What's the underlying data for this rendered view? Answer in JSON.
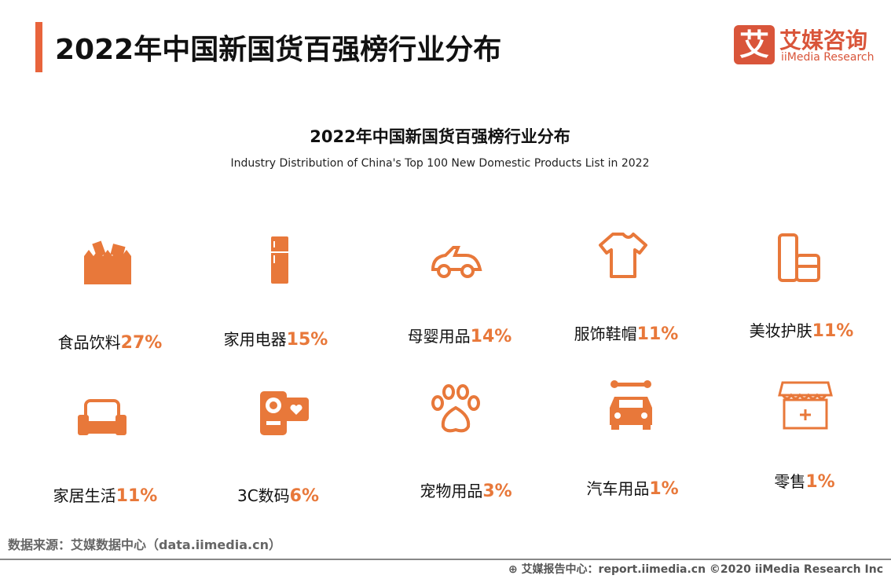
{
  "header": {
    "title": "2022年中国新国货百强榜行业分布",
    "logo_glyph": "艾",
    "logo_cn": "艾媒咨询",
    "logo_en": "iiMedia Research"
  },
  "accent": "#E8783A",
  "chart_data": {
    "type": "table",
    "title": "2022年中国新国货百强榜行业分布",
    "subtitle": "Industry Distribution of China's Top 100 New Domestic Products List in 2022",
    "unit": "%",
    "categories": [
      "食品饮料",
      "家用电器",
      "母婴用品",
      "服饰鞋帽",
      "美妆护肤",
      "家居生活",
      "3C数码",
      "宠物用品",
      "汽车用品",
      "零售"
    ],
    "values": [
      27,
      15,
      14,
      11,
      11,
      11,
      6,
      3,
      1,
      1
    ],
    "icons": [
      "food-drink-icon",
      "refrigerator-icon",
      "baby-car-icon",
      "tshirt-icon",
      "cosmetics-icon",
      "sofa-icon",
      "camera-icon",
      "paw-icon",
      "car-wrench-icon",
      "store-icon"
    ]
  },
  "footer": {
    "source": "数据来源：艾媒数据中心（data.iimedia.cn）",
    "credit": "艾媒报告中心：report.iimedia.cn   ©2020  iiMedia Research  Inc"
  }
}
